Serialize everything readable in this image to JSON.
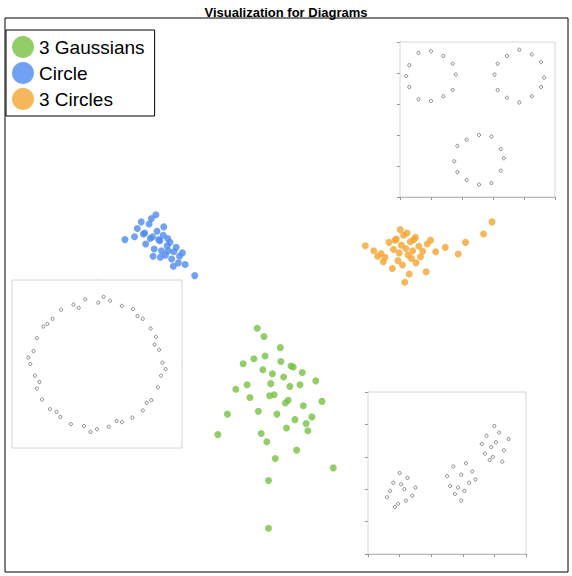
{
  "chart_data": [
    {
      "type": "scatter",
      "title": "Visualization for Diagrams",
      "legend": "upper left",
      "tick_labels": false,
      "grid": false,
      "xlim": [
        0,
        100
      ],
      "ylim": [
        0,
        100
      ],
      "marker": "circle",
      "series": [
        {
          "name": "3 Gaussians",
          "color": "#77c142",
          "x": [
            37.8,
            39.5,
            41.0,
            42.3,
            43.5,
            44.2,
            45.0,
            45.8,
            46.5,
            47.2,
            47.8,
            48.3,
            48.9,
            49.5,
            50.0,
            50.6,
            51.2,
            51.8,
            52.4,
            53.0,
            53.8,
            54.5,
            55.2,
            56.3,
            58.3,
            44.8,
            46.0,
            47.5,
            49.0,
            50.3,
            51.5,
            48.0,
            46.8,
            45.5,
            49.8,
            52.8,
            47.0,
            43.0,
            46.2,
            50.8,
            46.8,
            53.5
          ],
          "y": [
            24.8,
            28.5,
            33.0,
            37.6,
            31.5,
            38.5,
            29.0,
            36.5,
            23.5,
            34.0,
            32.0,
            28.5,
            40.5,
            35.2,
            26.0,
            33.5,
            37.0,
            22.0,
            33.8,
            30.0,
            25.5,
            28.0,
            34.5,
            30.8,
            18.8,
            44.0,
            42.5,
            35.8,
            38.0,
            31.0,
            27.5,
            20.5,
            16.5,
            25.0,
            30.5,
            36.0,
            31.8,
            33.8,
            39.0,
            37.2,
            7.9,
            26.8
          ]
        },
        {
          "name": "Circle",
          "color": "#4e8af0",
          "x": [
            23.5,
            24.8,
            25.6,
            26.2,
            27.0,
            27.5,
            28.1,
            28.8,
            29.3,
            30.0,
            25.0,
            26.5,
            27.8,
            28.5,
            29.6,
            30.8,
            26.0,
            24.2,
            27.3,
            28.9,
            31.0,
            29.9,
            25.8,
            23.0,
            21.3,
            26.8,
            28.2,
            30.4,
            32.0,
            33.7,
            27.6,
            29.0,
            24.6,
            31.5,
            26.3
          ],
          "y": [
            62.0,
            61.2,
            62.8,
            60.5,
            61.5,
            59.8,
            60.8,
            58.9,
            59.5,
            57.8,
            59.2,
            58.3,
            58.0,
            57.2,
            56.5,
            55.8,
            63.8,
            63.2,
            60.0,
            60.2,
            57.0,
            55.2,
            60.2,
            60.5,
            60.0,
            64.5,
            62.3,
            58.6,
            55.5,
            53.5,
            56.8,
            58.0,
            61.0,
            57.6,
            57.0
          ]
        },
        {
          "name": "3 Circles",
          "color": "#f2a530",
          "x": [
            64.0,
            65.5,
            66.8,
            67.5,
            68.2,
            69.0,
            69.5,
            70.0,
            70.4,
            70.8,
            71.2,
            71.6,
            72.0,
            72.4,
            72.9,
            73.5,
            74.2,
            75.0,
            69.8,
            70.6,
            71.4,
            72.2,
            68.8,
            67.2,
            71.0,
            73.0,
            74.8,
            76.5,
            78.2,
            80.5,
            81.8,
            85.0,
            86.5,
            70.2,
            72.6,
            69.3,
            71.8,
            73.8,
            66.2,
            75.6
          ],
          "y": [
            58.9,
            58.0,
            57.5,
            56.8,
            59.5,
            58.2,
            60.1,
            57.6,
            59.0,
            60.8,
            58.4,
            57.2,
            59.6,
            58.0,
            60.4,
            58.8,
            57.9,
            59.2,
            56.2,
            55.4,
            61.2,
            56.6,
            54.8,
            56.0,
            52.3,
            55.8,
            54.2,
            57.8,
            58.6,
            57.4,
            59.5,
            61.0,
            63.2,
            61.8,
            60.0,
            59.9,
            53.8,
            56.9,
            57.0,
            59.9
          ]
        }
      ]
    },
    {
      "type": "scatter",
      "tick_labels": false,
      "marker": "open_circle",
      "xlim": [
        -1.3,
        1.3
      ],
      "ylim": [
        -1.3,
        1.3
      ],
      "xticks": [
        -1,
        -0.5,
        0,
        0.5,
        1
      ],
      "yticks": [
        -1,
        -0.5,
        0,
        0.5,
        1
      ],
      "series": [
        {
          "color": "#333333",
          "x": [
            1.0,
            0.95,
            0.9,
            0.82,
            0.7,
            0.55,
            0.38,
            0.2,
            0.02,
            -0.18,
            -0.36,
            -0.55,
            -0.68,
            -0.82,
            -0.92,
            -0.97,
            -1.02,
            -0.95,
            -0.92,
            -0.84,
            -0.72,
            -0.56,
            -0.4,
            -0.2,
            0.0,
            0.18,
            0.38,
            0.54,
            0.7,
            0.83,
            0.93,
            0.98,
            0.88,
            -0.88,
            0.3,
            -0.28,
            0.62,
            -0.62,
            1.05,
            -1.05,
            0.1,
            -0.1,
            0.76,
            -0.76
          ],
          "y": [
            0.02,
            0.22,
            0.42,
            0.55,
            0.7,
            0.85,
            0.9,
            0.98,
            0.95,
            1.0,
            0.92,
            0.84,
            0.7,
            0.58,
            0.4,
            0.2,
            0.0,
            -0.18,
            -0.38,
            -0.55,
            -0.7,
            -0.82,
            -0.93,
            -0.96,
            -1.01,
            -0.97,
            -0.9,
            -0.83,
            -0.72,
            -0.56,
            -0.36,
            -0.18,
            0.3,
            -0.28,
            -0.88,
            0.87,
            0.74,
            -0.74,
            -0.08,
            0.1,
            1.04,
            -1.05,
            -0.6,
            0.62
          ]
        }
      ]
    },
    {
      "type": "scatter",
      "tick_labels": false,
      "marker": "open_circle",
      "xlim": [
        0,
        10
      ],
      "ylim": [
        0,
        10
      ],
      "xticks": [
        0,
        2,
        4,
        6,
        8,
        10
      ],
      "yticks": [
        0,
        2,
        4,
        6,
        8,
        10
      ],
      "series": [
        {
          "color": "#333333",
          "x": [
            3.6,
            3.4,
            2.8,
            2.0,
            1.2,
            0.6,
            0.4,
            0.6,
            1.2,
            2.0,
            2.8,
            3.4,
            9.3,
            9.1,
            8.5,
            7.7,
            6.9,
            6.3,
            6.1,
            6.3,
            6.9,
            7.7,
            8.5,
            9.1,
            6.7,
            6.5,
            5.9,
            5.1,
            4.3,
            3.7,
            3.5,
            3.7,
            4.3,
            5.1,
            5.9,
            6.5
          ],
          "y": [
            7.9,
            8.6,
            9.1,
            9.4,
            9.3,
            8.5,
            7.8,
            7.1,
            6.3,
            6.2,
            6.5,
            6.9,
            7.7,
            8.7,
            9.2,
            9.5,
            9.1,
            8.6,
            7.9,
            6.9,
            6.4,
            6.1,
            6.5,
            7.1,
            2.5,
            3.1,
            3.9,
            4.0,
            3.7,
            3.3,
            2.3,
            1.6,
            1.1,
            0.8,
            0.9,
            1.7
          ]
        }
      ]
    },
    {
      "type": "scatter",
      "tick_labels": false,
      "marker": "open_circle",
      "xlim": [
        0,
        10
      ],
      "ylim": [
        0,
        10
      ],
      "xticks": [
        0,
        2,
        4,
        6,
        8,
        10
      ],
      "yticks": [
        0,
        2,
        4,
        6,
        8,
        10
      ],
      "series": [
        {
          "color": "#333333",
          "x": [
            1.2,
            1.6,
            2.3,
            2.8,
            1.9,
            2.5,
            1.4,
            2.1,
            3.0,
            1.7,
            2.4,
            2.0,
            5.2,
            5.9,
            6.4,
            5.5,
            6.1,
            5.0,
            6.6,
            5.7,
            6.2,
            5.4,
            5.9,
            6.8,
            7.4,
            8.1,
            8.6,
            7.7,
            8.3,
            7.2,
            8.9,
            7.9,
            8.0,
            7.5,
            8.5,
            7.8
          ],
          "y": [
            3.5,
            4.4,
            4.0,
            3.6,
            3.1,
            4.7,
            3.9,
            4.3,
            4.1,
            2.9,
            3.3,
            5.0,
            4.2,
            4.9,
            4.4,
            3.7,
            3.9,
            4.8,
            5.1,
            4.1,
            5.6,
            5.4,
            3.3,
            4.6,
            6.2,
            6.9,
            6.4,
            5.8,
            7.5,
            6.8,
            7.1,
            6.0,
            7.9,
            7.3,
            5.7,
            6.6
          ]
        }
      ]
    }
  ]
}
